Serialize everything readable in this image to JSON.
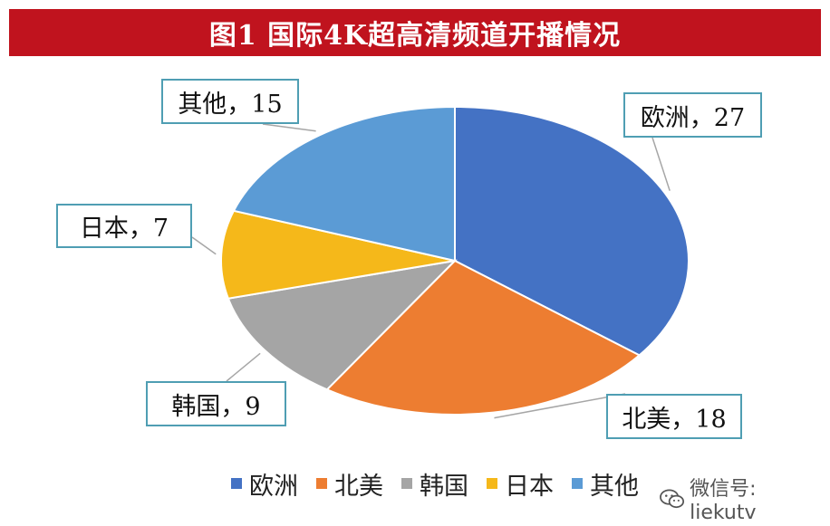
{
  "chart_data": {
    "type": "pie",
    "title": "图1  国际4K超高清频道开播情况",
    "categories": [
      "欧洲",
      "北美",
      "韩国",
      "日本",
      "其他"
    ],
    "values": [
      27,
      18,
      9,
      7,
      15
    ],
    "colors": [
      "#4472c4",
      "#ed7d31",
      "#a5a5a5",
      "#f5b81a",
      "#5b9bd5"
    ],
    "data_labels": [
      "欧洲，27",
      "北美，18",
      "韩国，9",
      "日本，7",
      "其他，15"
    ],
    "legend_position": "bottom"
  },
  "watermark": {
    "text": "微信号: liekutv",
    "icon": "wechat-icon"
  }
}
